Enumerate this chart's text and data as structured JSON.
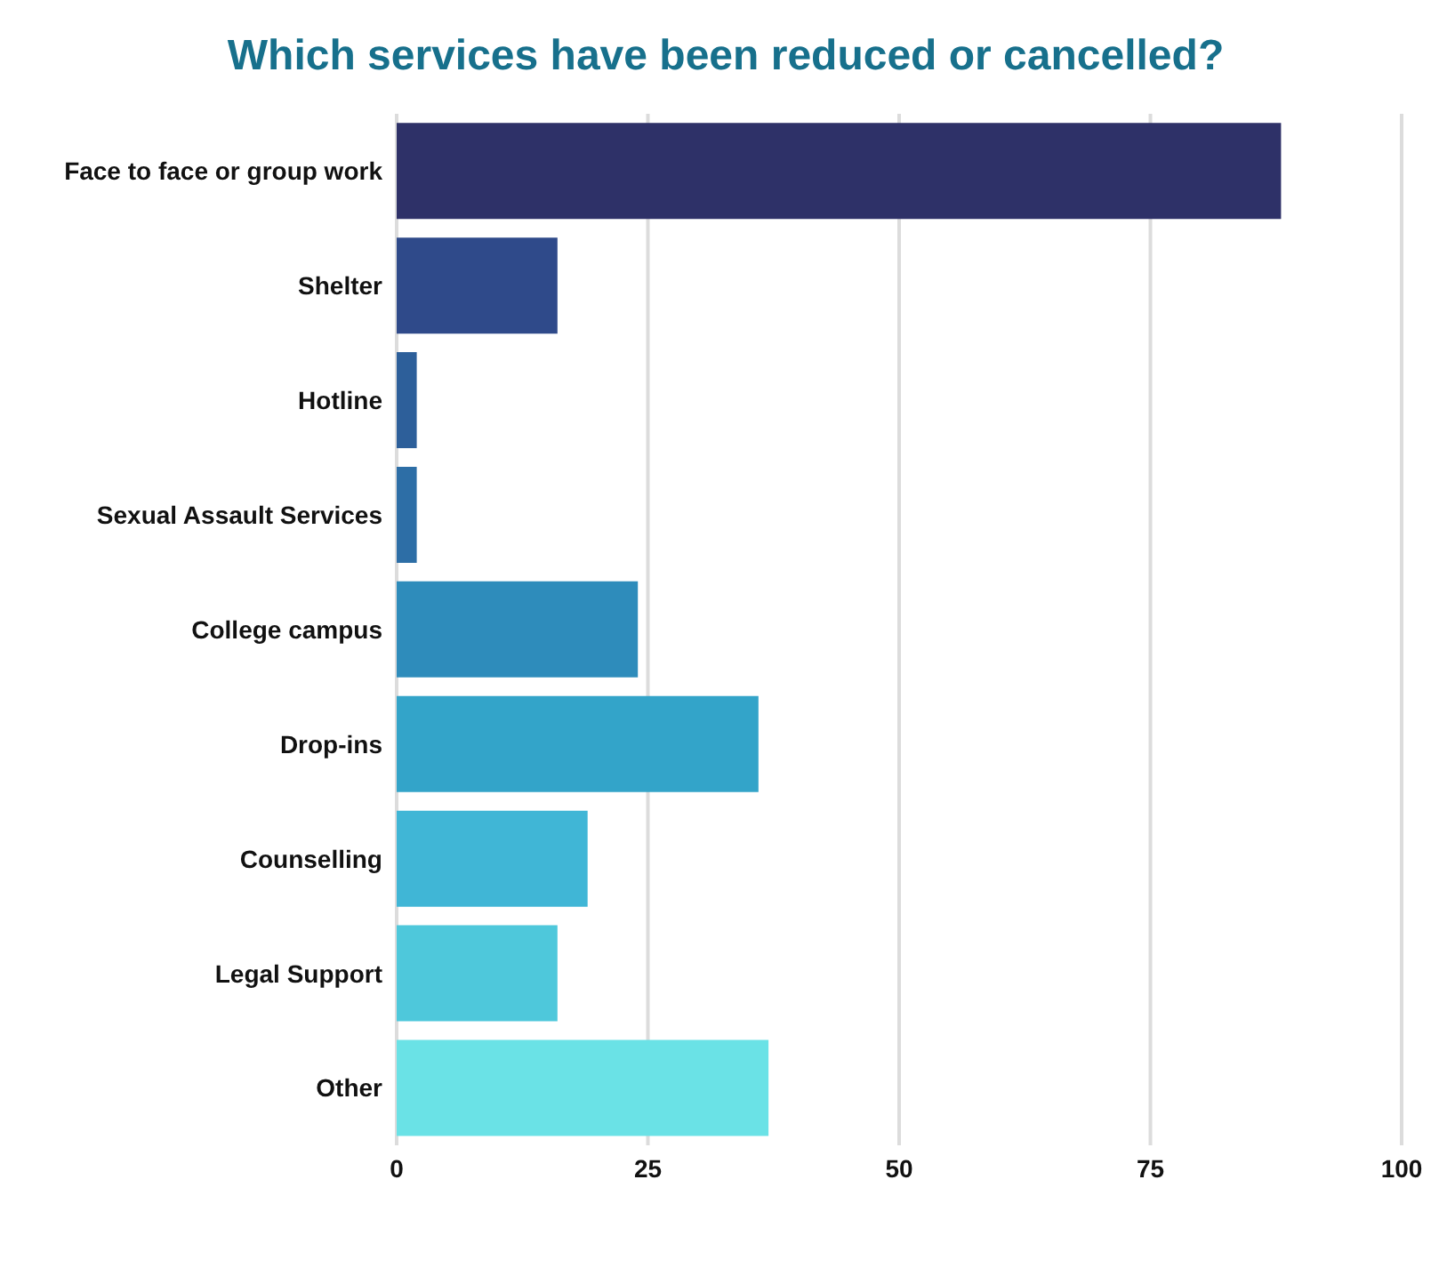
{
  "chart_data": {
    "type": "bar",
    "orientation": "horizontal",
    "title": "Which services have been reduced or cancelled?",
    "categories": [
      "Face to face or group work",
      "Shelter",
      "Hotline",
      "Sexual Assault Services",
      "College campus",
      "Drop-ins",
      "Counselling",
      "Legal Support",
      "Other"
    ],
    "values": [
      88,
      16,
      2,
      2,
      24,
      36,
      19,
      16,
      37
    ],
    "colors": [
      "#2e3168",
      "#2f4a8a",
      "#2d5f9a",
      "#2d6ea6",
      "#2e8cbb",
      "#33a4c9",
      "#40b6d6",
      "#4ec8db",
      "#6ae2e6"
    ],
    "xlim": [
      0,
      100
    ],
    "xticks": [
      0,
      25,
      50,
      75,
      100
    ],
    "grid": "x"
  }
}
